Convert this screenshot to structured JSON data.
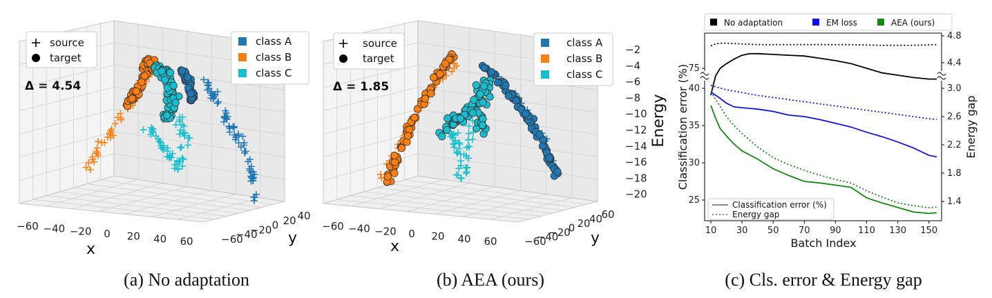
{
  "chart_data": [
    {
      "type": "scatter",
      "id": "a",
      "caption": "(a) No adaptation",
      "delta_label": "Δ = 4.54",
      "legend_markers": [
        {
          "label": "source",
          "marker": "plus"
        },
        {
          "label": "target",
          "marker": "circle"
        }
      ],
      "legend_classes": [
        {
          "label": "class A",
          "color": "#1f77b4"
        },
        {
          "label": "class B",
          "color": "#ff7f0e"
        },
        {
          "label": "class C",
          "color": "#17becf"
        }
      ],
      "xlabel": "x",
      "ylabel": "y",
      "x_ticks": [
        "−60",
        "−40",
        "−20",
        "0",
        "20",
        "40",
        "60"
      ],
      "y_ticks": [
        "−60",
        "−40",
        "−20",
        "0",
        "20",
        "40"
      ]
    },
    {
      "type": "scatter",
      "id": "b",
      "caption": "(b) AEA (ours)",
      "delta_label": "Δ = 1.85",
      "legend_markers": [
        {
          "label": "source",
          "marker": "plus"
        },
        {
          "label": "target",
          "marker": "circle"
        }
      ],
      "legend_classes": [
        {
          "label": "class A",
          "color": "#1f77b4"
        },
        {
          "label": "class B",
          "color": "#ff7f0e"
        },
        {
          "label": "class C",
          "color": "#17becf"
        }
      ],
      "xlabel": "x",
      "ylabel": "y",
      "zlabel": "Energy",
      "x_ticks": [
        "−60",
        "−40",
        "−20",
        "0",
        "20",
        "40",
        "60"
      ],
      "y_ticks": [
        "−60",
        "−40",
        "−20",
        "0",
        "20",
        "40",
        "60"
      ],
      "z_ticks": [
        "−2",
        "−4",
        "−6",
        "−8",
        "−10",
        "−12",
        "−14",
        "−16",
        "−18",
        "−20"
      ]
    },
    {
      "type": "line",
      "id": "c",
      "caption": "(c) Cls. error & Energy gap",
      "xlabel": "Batch Index",
      "ylabel": "Classification error (%)",
      "y2label": "Energy gap",
      "x_ticks": [
        10,
        30,
        50,
        70,
        90,
        110,
        130,
        150
      ],
      "y_ticks": [
        25,
        30,
        35,
        40,
        75
      ],
      "y2_ticks": [
        1.4,
        1.8,
        2.2,
        2.6,
        3.0,
        4.4,
        4.8
      ],
      "methods": [
        {
          "name": "No adaptation",
          "color": "#000000"
        },
        {
          "name": "EM loss",
          "color": "#1010ee"
        },
        {
          "name": "AEA (ours)",
          "color": "#118811"
        }
      ],
      "style_legend": [
        {
          "label": "Classification error (%)",
          "style": "solid"
        },
        {
          "label": "Energy gap",
          "style": "dotted"
        }
      ],
      "series": [
        {
          "method": "No adaptation",
          "kind": "Classification error (%)",
          "axis": "left-top",
          "x": [
            10,
            13,
            16,
            20,
            25,
            30,
            35,
            40,
            50,
            60,
            70,
            80,
            90,
            100,
            110,
            120,
            130,
            140,
            150,
            155
          ],
          "y": [
            71.5,
            74.0,
            75.0,
            75.6,
            76.2,
            76.7,
            76.9,
            76.9,
            76.8,
            76.7,
            76.6,
            76.3,
            76.0,
            75.6,
            75.0,
            74.4,
            74.1,
            73.8,
            73.6,
            73.6
          ]
        },
        {
          "method": "No adaptation",
          "kind": "Energy gap",
          "axis": "right",
          "x": [
            10,
            13,
            16,
            20,
            30,
            40,
            60,
            80,
            100,
            120,
            140,
            155
          ],
          "y": [
            4.65,
            4.68,
            4.69,
            4.69,
            4.68,
            4.67,
            4.67,
            4.67,
            4.67,
            4.66,
            4.66,
            4.67
          ]
        },
        {
          "method": "EM loss",
          "kind": "Classification error (%)",
          "axis": "left",
          "x": [
            10,
            15,
            20,
            25,
            30,
            40,
            50,
            60,
            70,
            80,
            90,
            100,
            110,
            120,
            130,
            140,
            150,
            155
          ],
          "y": [
            39.5,
            38.8,
            38.0,
            37.5,
            37.4,
            37.2,
            36.9,
            36.4,
            36.2,
            35.8,
            35.3,
            34.8,
            34.1,
            33.5,
            32.8,
            32.0,
            31.0,
            30.8
          ]
        },
        {
          "method": "EM loss",
          "kind": "Energy gap",
          "axis": "right",
          "x": [
            10,
            20,
            30,
            40,
            50,
            60,
            70,
            80,
            90,
            100,
            110,
            120,
            130,
            140,
            150,
            155
          ],
          "y": [
            3.04,
            2.98,
            2.94,
            2.9,
            2.87,
            2.84,
            2.81,
            2.78,
            2.75,
            2.72,
            2.69,
            2.66,
            2.63,
            2.6,
            2.57,
            2.56
          ]
        },
        {
          "method": "AEA (ours)",
          "kind": "Classification error (%)",
          "axis": "left",
          "x": [
            10,
            13,
            16,
            20,
            25,
            30,
            40,
            50,
            60,
            70,
            80,
            90,
            100,
            110,
            120,
            130,
            140,
            150,
            155
          ],
          "y": [
            37.7,
            36.0,
            34.6,
            33.6,
            32.5,
            31.6,
            30.5,
            29.2,
            28.3,
            27.5,
            27.3,
            27.0,
            26.7,
            25.3,
            24.6,
            24.0,
            23.4,
            23.2,
            23.3
          ]
        },
        {
          "method": "AEA (ours)",
          "kind": "Energy gap",
          "axis": "right",
          "x": [
            10,
            15,
            20,
            25,
            30,
            40,
            50,
            60,
            70,
            80,
            90,
            100,
            110,
            120,
            130,
            140,
            150,
            155
          ],
          "y": [
            2.95,
            2.78,
            2.6,
            2.47,
            2.36,
            2.17,
            2.02,
            1.92,
            1.84,
            1.77,
            1.71,
            1.66,
            1.55,
            1.46,
            1.38,
            1.34,
            1.31,
            1.32
          ]
        }
      ]
    }
  ]
}
